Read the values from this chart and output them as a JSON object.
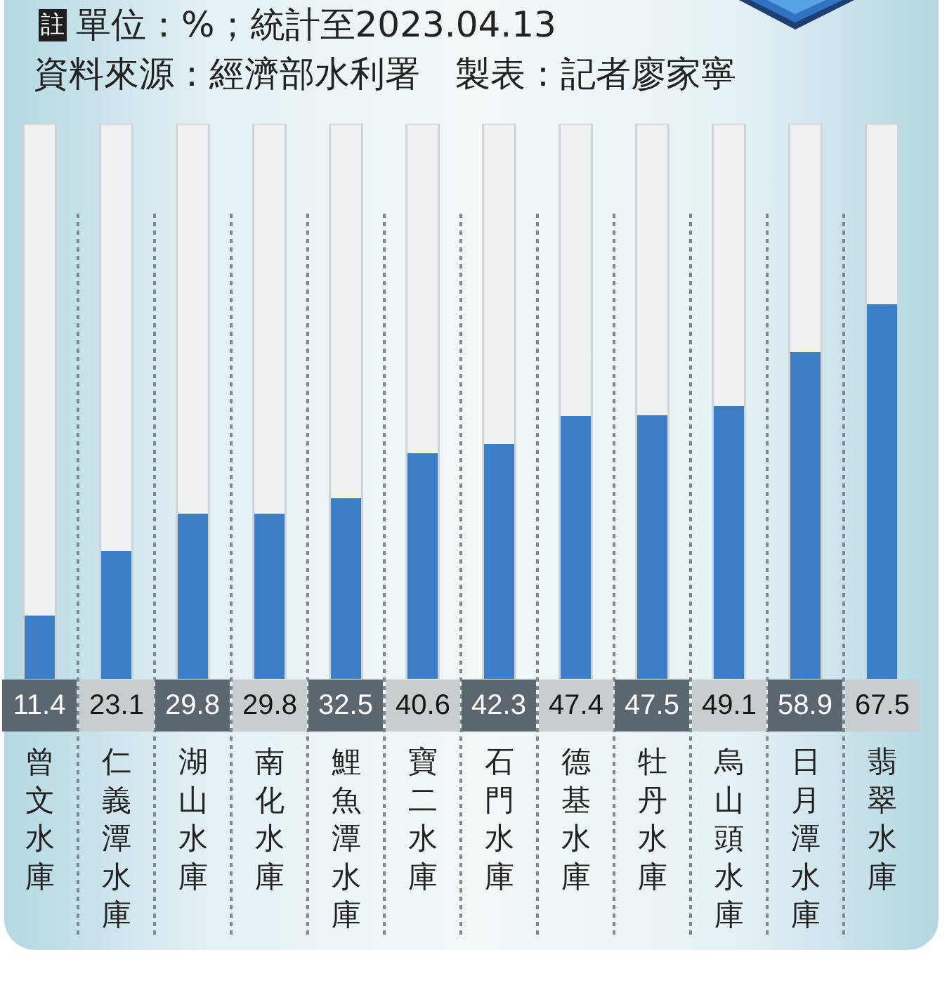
{
  "chart_data": {
    "type": "bar",
    "categories": [
      "曾文水庫",
      "仁義潭水庫",
      "湖山水庫",
      "南化水庫",
      "鯉魚潭水庫",
      "寶二水庫",
      "石門水庫",
      "德基水庫",
      "牡丹水庫",
      "烏山頭水庫",
      "日月潭水庫",
      "翡翠水庫"
    ],
    "values": [
      11.4,
      23.1,
      29.8,
      29.8,
      32.5,
      40.6,
      42.3,
      47.4,
      47.5,
      49.1,
      58.9,
      67.5
    ],
    "color": "#3d7ec8",
    "ylim": [
      0,
      100
    ],
    "data_labels": true,
    "tick_labels": "x",
    "annotations": [
      "註",
      "單位：%；統計至2023.04.13",
      "資料來源：經濟部水利署　製表：記者廖家寧"
    ]
  }
}
